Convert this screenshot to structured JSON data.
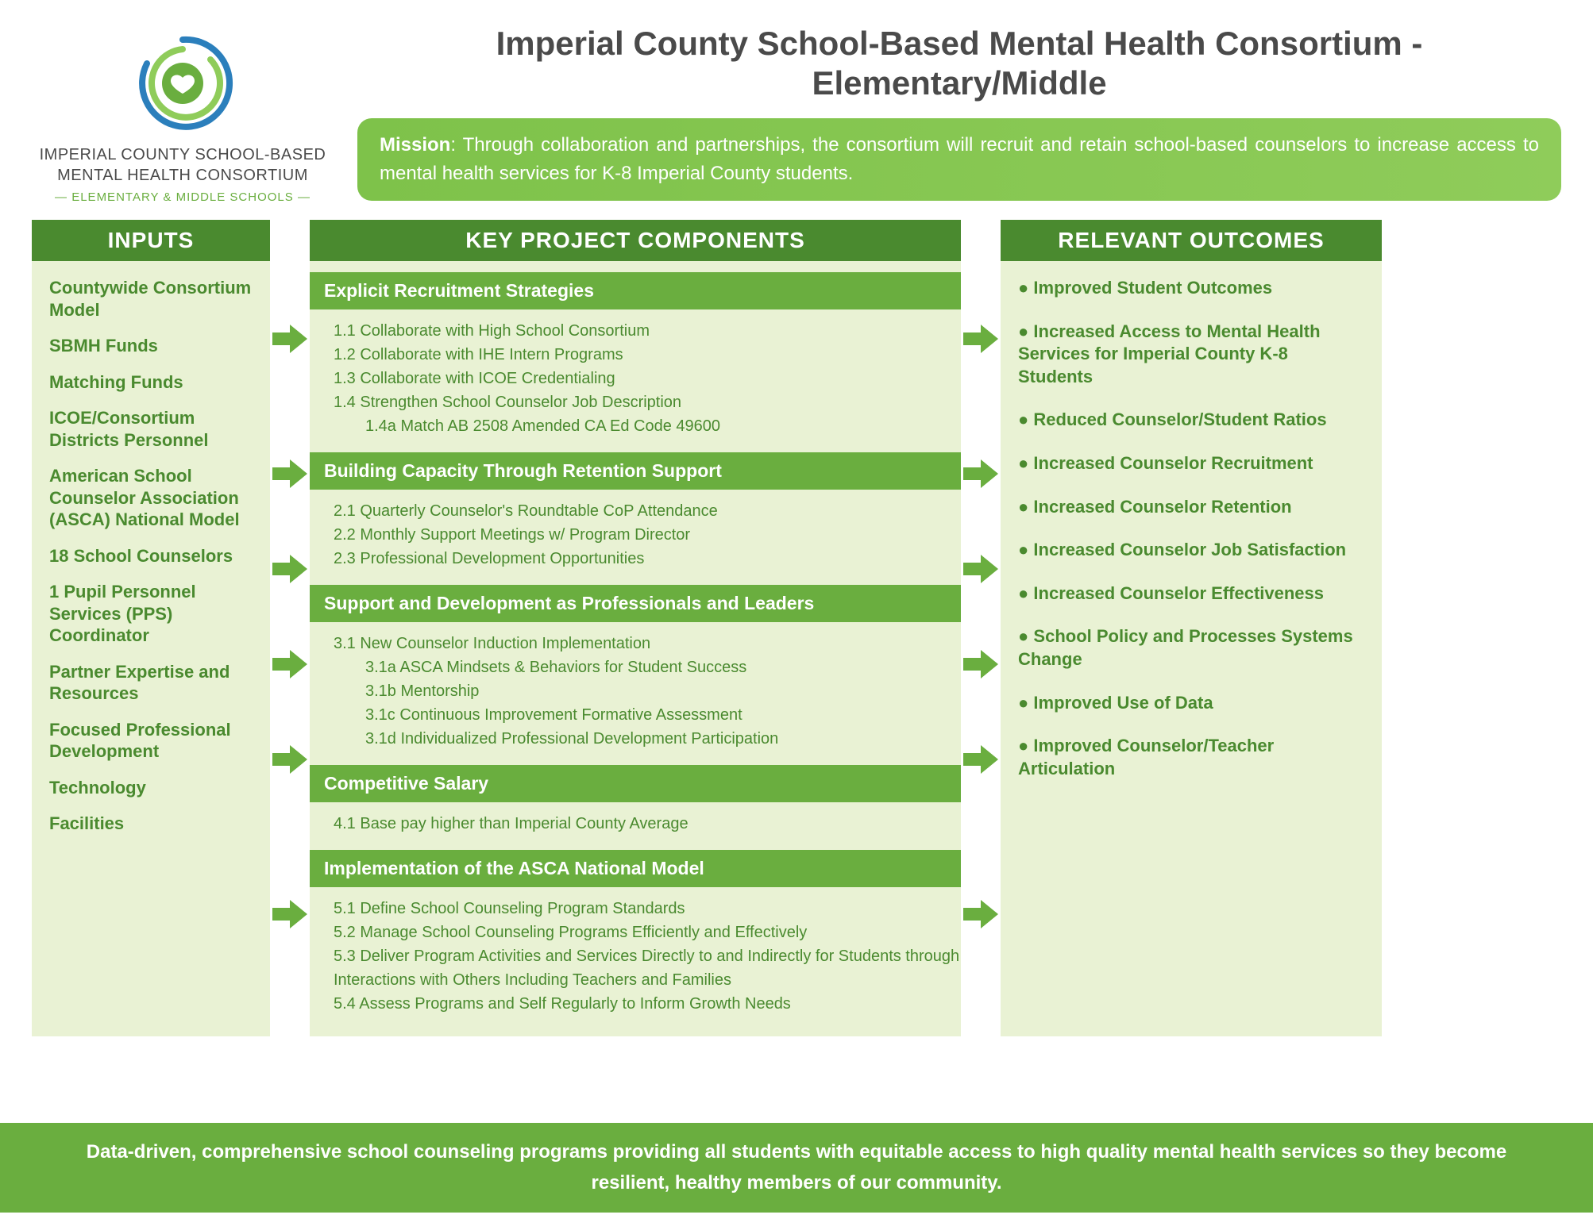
{
  "colors": {
    "dark_green": "#4a8a2f",
    "mid_green": "#6aae3f",
    "light_green_bg": "#e9f2d4",
    "gradient_start": "#7ec24a",
    "gradient_end": "#8fcc5a",
    "title_gray": "#4a4a4a",
    "white": "#ffffff",
    "logo_blue": "#2b7fbc"
  },
  "logo": {
    "line1": "IMPERIAL COUNTY SCHOOL-BASED",
    "line2": "MENTAL HEALTH CONSORTIUM",
    "sub": "— ELEMENTARY & MIDDLE SCHOOLS —"
  },
  "title": "Imperial County School-Based Mental Health Consortium - Elementary/Middle",
  "mission": {
    "label": "Mission",
    "text": ":  Through collaboration and partnerships, the consortium will recruit and retain school-based counselors to increase access to mental health services for K-8 Imperial County students."
  },
  "headers": {
    "inputs": "INPUTS",
    "components": "KEY PROJECT COMPONENTS",
    "outcomes": "RELEVANT OUTCOMES"
  },
  "inputs": [
    "Countywide Consortium Model",
    "SBMH Funds",
    "Matching Funds",
    "ICOE/Consortium Districts Personnel",
    "American School Counselor Association (ASCA) National Model",
    "18 School Counselors",
    "1 Pupil Personnel Services (PPS) Coordinator",
    "Partner Expertise and Resources",
    "Focused Professional Development",
    "Technology",
    "Facilities"
  ],
  "components": [
    {
      "title": "Explicit Recruitment Strategies",
      "items": [
        {
          "text": "1.1 Collaborate with High School Consortium"
        },
        {
          "text": "1.2 Collaborate with IHE Intern Programs"
        },
        {
          "text": "1.3 Collaborate with ICOE Credentialing"
        },
        {
          "text": "1.4 Strengthen School Counselor Job Description"
        },
        {
          "text": "1.4a Match AB 2508 Amended CA Ed Code 49600",
          "sub": true
        }
      ]
    },
    {
      "title": "Building Capacity Through Retention Support",
      "items": [
        {
          "text": "2.1 Quarterly Counselor's Roundtable CoP Attendance"
        },
        {
          "text": "2.2 Monthly Support Meetings w/ Program Director"
        },
        {
          "text": "2.3 Professional Development Opportunities"
        }
      ]
    },
    {
      "title": "Support and Development as Professionals and Leaders",
      "items": [
        {
          "text": "3.1 New Counselor Induction Implementation"
        },
        {
          "text": "3.1a ASCA Mindsets & Behaviors for Student Success",
          "sub": true
        },
        {
          "text": "3.1b Mentorship",
          "sub": true
        },
        {
          "text": "3.1c Continuous Improvement Formative Assessment",
          "sub": true
        },
        {
          "text": "3.1d Individualized Professional Development Participation",
          "sub": true
        }
      ]
    },
    {
      "title": "Competitive Salary",
      "items": [
        {
          "text": "4.1 Base pay higher than Imperial County Average"
        }
      ]
    },
    {
      "title": "Implementation of the ASCA National Model",
      "items": [
        {
          "text": "5.1 Define School Counseling Program Standards"
        },
        {
          "text": "5.2 Manage School Counseling Programs Efficiently and Effectively"
        },
        {
          "text": "5.3 Deliver Program Activities and Services Directly to and Indirectly for Students through Interactions with Others Including Teachers and Families"
        },
        {
          "text": "5.4 Assess Programs and Self Regularly to Inform Growth Needs"
        }
      ]
    }
  ],
  "outcomes": [
    "Improved Student Outcomes",
    "Increased Access to Mental Health Services for Imperial County K-8 Students",
    "Reduced Counselor/Student Ratios",
    "Increased Counselor Recruitment",
    "Increased Counselor Retention",
    "Increased Counselor Job Satisfaction",
    "Increased Counselor Effectiveness",
    "School Policy and Processes Systems Change",
    "Improved Use of Data",
    "Improved Counselor/Teacher Articulation"
  ],
  "footer": "Data-driven, comprehensive school counseling programs providing all students with equitable access to high quality mental health services so they become resilient, healthy members of our community.",
  "arrows_left_y": [
    130,
    300,
    420,
    540,
    660,
    855
  ],
  "arrows_right_y": [
    130,
    300,
    420,
    540,
    660,
    855
  ]
}
